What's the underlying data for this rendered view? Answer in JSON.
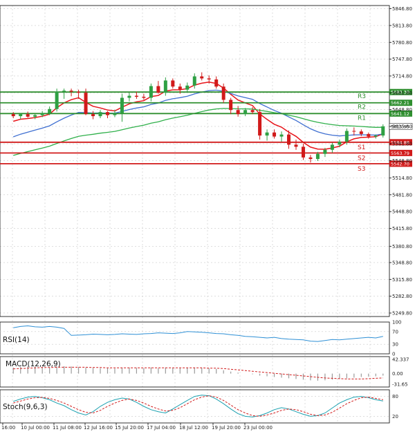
{
  "chart_data": {
    "type": "candlestick",
    "instrument_timeframe": "",
    "main_panel": {
      "y_ticks": [
        "5846.80",
        "5813.80",
        "5780.80",
        "5747.80",
        "5714.80",
        "5681.80",
        "5648.80",
        "5615.80",
        "5581.80",
        "5548.80",
        "5514.80",
        "5481.80",
        "5448.80",
        "5415.80",
        "5380.80",
        "5348.80",
        "5315.80",
        "5282.80",
        "5249.80"
      ],
      "current_price": "5615.95",
      "levels": [
        {
          "name": "R3",
          "price": 5683.3,
          "label": "5683.30",
          "kind": "resistance"
        },
        {
          "name": "R2",
          "price": 5662.21,
          "label": "5662.21",
          "kind": "resistance"
        },
        {
          "name": "R1",
          "price": 5641.12,
          "label": "5641.12",
          "kind": "resistance"
        },
        {
          "name": "S1",
          "price": 5584.88,
          "label": "5584.88",
          "kind": "support"
        },
        {
          "name": "S2",
          "price": 5563.79,
          "label": "5563.79",
          "kind": "support"
        },
        {
          "name": "S3",
          "price": 5542.7,
          "label": "5542.70",
          "kind": "support"
        }
      ],
      "candles": [
        [
          5640,
          5644,
          5632,
          5636
        ],
        [
          5636,
          5642,
          5630,
          5640
        ],
        [
          5640,
          5645,
          5633,
          5635
        ],
        [
          5635,
          5641,
          5630,
          5638
        ],
        [
          5638,
          5646,
          5634,
          5642
        ],
        [
          5642,
          5655,
          5638,
          5650
        ],
        [
          5650,
          5690,
          5645,
          5684
        ],
        [
          5684,
          5690,
          5670,
          5686
        ],
        [
          5686,
          5690,
          5675,
          5684
        ],
        [
          5684,
          5688,
          5670,
          5682
        ],
        [
          5682,
          5690,
          5638,
          5640
        ],
        [
          5640,
          5646,
          5630,
          5636
        ],
        [
          5636,
          5648,
          5632,
          5644
        ],
        [
          5644,
          5646,
          5632,
          5638
        ],
        [
          5638,
          5648,
          5634,
          5642
        ],
        [
          5642,
          5680,
          5625,
          5672
        ],
        [
          5672,
          5682,
          5665,
          5676
        ],
        [
          5676,
          5684,
          5670,
          5674
        ],
        [
          5674,
          5680,
          5668,
          5672
        ],
        [
          5672,
          5700,
          5665,
          5695
        ],
        [
          5695,
          5705,
          5680,
          5682
        ],
        [
          5682,
          5712,
          5676,
          5706
        ],
        [
          5706,
          5710,
          5690,
          5694
        ],
        [
          5694,
          5700,
          5680,
          5688
        ],
        [
          5688,
          5702,
          5684,
          5696
        ],
        [
          5696,
          5720,
          5690,
          5714
        ],
        [
          5714,
          5722,
          5706,
          5710
        ],
        [
          5710,
          5716,
          5700,
          5708
        ],
        [
          5708,
          5714,
          5690,
          5694
        ],
        [
          5694,
          5700,
          5662,
          5668
        ],
        [
          5668,
          5672,
          5640,
          5648
        ],
        [
          5648,
          5656,
          5635,
          5640
        ],
        [
          5640,
          5652,
          5636,
          5648
        ],
        [
          5648,
          5654,
          5640,
          5644
        ],
        [
          5644,
          5650,
          5590,
          5598
        ],
        [
          5598,
          5610,
          5588,
          5604
        ],
        [
          5604,
          5610,
          5592,
          5596
        ],
        [
          5596,
          5606,
          5586,
          5600
        ],
        [
          5600,
          5608,
          5572,
          5580
        ],
        [
          5580,
          5590,
          5570,
          5576
        ],
        [
          5576,
          5582,
          5550,
          5555
        ],
        [
          5555,
          5560,
          5545,
          5552
        ],
        [
          5552,
          5566,
          5548,
          5562
        ],
        [
          5562,
          5574,
          5556,
          5570
        ],
        [
          5570,
          5584,
          5564,
          5580
        ],
        [
          5580,
          5590,
          5575,
          5586
        ],
        [
          5586,
          5612,
          5580,
          5607
        ],
        [
          5607,
          5614,
          5598,
          5606
        ],
        [
          5606,
          5610,
          5597,
          5601
        ],
        [
          5601,
          5604,
          5592,
          5596
        ],
        [
          5596,
          5600,
          5592,
          5598
        ],
        [
          5598,
          5620,
          5594,
          5616
        ]
      ],
      "x_labels": [
        "16:00",
        "10 Jul 00:00",
        "11 Jul 08:00",
        "12 Jul 16:00",
        "15 Jul 20:00",
        "17 Jul 04:00",
        "18 Jul 12:00",
        "19 Jul 20:00",
        "23 Jul 00:00"
      ]
    },
    "rsi_panel": {
      "label": "RSI(14)",
      "y_ticks": [
        "100",
        "70",
        "30",
        "0"
      ],
      "values": [
        82,
        86,
        88,
        85,
        84,
        86,
        84,
        80,
        58,
        59,
        60,
        62,
        61,
        60,
        61,
        63,
        62,
        61,
        63,
        64,
        66,
        65,
        64,
        66,
        70,
        69,
        68,
        66,
        64,
        63,
        60,
        58,
        55,
        54,
        52,
        50,
        52,
        48,
        46,
        45,
        44,
        40,
        39,
        42,
        45,
        44,
        46,
        48,
        50,
        52,
        50,
        55
      ]
    },
    "macd_panel": {
      "label": "MACD(12,26,9)",
      "y_ticks": [
        "42.337",
        "0.00",
        "-31.65"
      ],
      "histogram": [
        18,
        20,
        22,
        21,
        20,
        19,
        21,
        22,
        21,
        20,
        18,
        17,
        16,
        16,
        15,
        17,
        18,
        17,
        16,
        18,
        16,
        18,
        17,
        16,
        17,
        18,
        17,
        16,
        14,
        10,
        6,
        3,
        0,
        -2,
        -6,
        -8,
        -10,
        -12,
        -14,
        -16,
        -18,
        -20,
        -21,
        -20,
        -18,
        -16,
        -14,
        -12,
        -10,
        -9,
        -8,
        -6
      ],
      "signal": [
        14,
        15,
        16,
        17,
        18,
        18,
        19,
        19,
        19,
        19,
        19,
        18,
        18,
        17,
        17,
        17,
        17,
        17,
        17,
        17,
        17,
        17,
        17,
        17,
        17,
        17,
        17,
        16,
        16,
        15,
        13,
        11,
        9,
        7,
        5,
        3,
        1,
        -1,
        -3,
        -5,
        -7,
        -9,
        -11,
        -13,
        -14,
        -15,
        -16,
        -16,
        -16,
        -15,
        -14,
        -13
      ]
    },
    "stoch_panel": {
      "label": "Stoch(9,6,3)",
      "y_ticks": [
        "80",
        "20"
      ],
      "k": [
        65,
        72,
        78,
        80,
        76,
        70,
        60,
        52,
        40,
        30,
        24,
        34,
        50,
        62,
        70,
        75,
        72,
        62,
        50,
        40,
        34,
        30,
        42,
        55,
        68,
        80,
        84,
        82,
        72,
        58,
        42,
        28,
        20,
        18,
        22,
        30,
        40,
        46,
        42,
        34,
        26,
        20,
        22,
        30,
        45,
        60,
        70,
        78,
        80,
        76,
        70,
        66
      ],
      "d": [
        60,
        66,
        72,
        76,
        77,
        74,
        68,
        60,
        50,
        40,
        32,
        30,
        38,
        50,
        60,
        68,
        72,
        68,
        60,
        50,
        42,
        36,
        38,
        46,
        58,
        70,
        78,
        82,
        78,
        68,
        54,
        40,
        30,
        22,
        20,
        24,
        30,
        38,
        42,
        40,
        34,
        26,
        22,
        24,
        32,
        45,
        58,
        68,
        76,
        78,
        74,
        70
      ]
    },
    "indicator_colors": {
      "ma_fast": "#e8141a",
      "ma_mid": "#3f6fd1",
      "ma_slow": "#2fb04a",
      "bull_candle": "#2ea043",
      "bear_candle": "#d11a1a",
      "resistance": "#2f8f2f",
      "support": "#d11a1a",
      "rsi": "#2d8fd5",
      "macd_signal": "#d11a1a",
      "stoch_k": "#1aa0b0",
      "stoch_d": "#d11a1a"
    }
  }
}
